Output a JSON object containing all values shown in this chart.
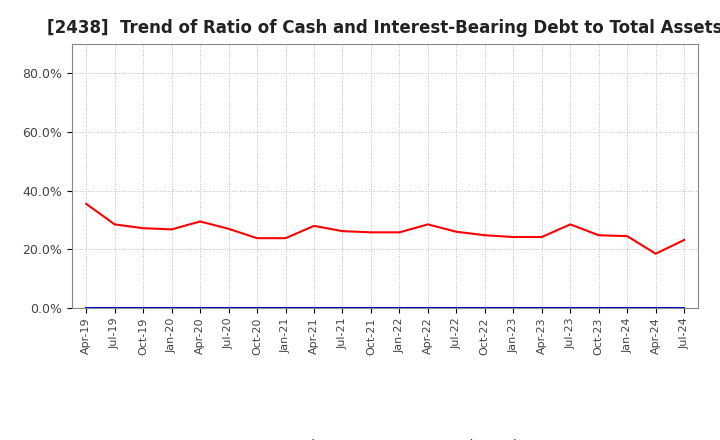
{
  "title": "[2438]  Trend of Ratio of Cash and Interest-Bearing Debt to Total Assets",
  "x_labels": [
    "Apr-19",
    "Jul-19",
    "Oct-19",
    "Jan-20",
    "Apr-20",
    "Jul-20",
    "Oct-20",
    "Jan-21",
    "Apr-21",
    "Jul-21",
    "Oct-21",
    "Jan-22",
    "Apr-22",
    "Jul-22",
    "Oct-22",
    "Jan-23",
    "Apr-23",
    "Jul-23",
    "Oct-23",
    "Jan-24",
    "Apr-24",
    "Jul-24"
  ],
  "cash": [
    0.355,
    0.285,
    0.272,
    0.268,
    0.295,
    0.27,
    0.238,
    0.238,
    0.28,
    0.262,
    0.258,
    0.258,
    0.285,
    0.26,
    0.248,
    0.242,
    0.242,
    0.285,
    0.248,
    0.245,
    0.185,
    0.232
  ],
  "interest_bearing_debt": [
    0.0,
    0.0,
    0.0,
    0.0,
    0.0,
    0.0,
    0.0,
    0.0,
    0.0,
    0.0,
    0.0,
    0.0,
    0.0,
    0.0,
    0.0,
    0.0,
    0.0,
    0.0,
    0.0,
    0.0,
    0.0,
    0.0
  ],
  "cash_color": "#ff0000",
  "debt_color": "#0000cc",
  "ylim": [
    0.0,
    0.9
  ],
  "yticks": [
    0.0,
    0.2,
    0.4,
    0.6,
    0.8
  ],
  "ytick_labels": [
    "0.0%",
    "20.0%",
    "40.0%",
    "60.0%",
    "80.0%"
  ],
  "background_color": "#ffffff",
  "grid_color": "#bbbbbb",
  "title_fontsize": 12,
  "tick_fontsize": 8,
  "legend_cash": "Cash",
  "legend_debt": "Interest-Bearing Debt"
}
